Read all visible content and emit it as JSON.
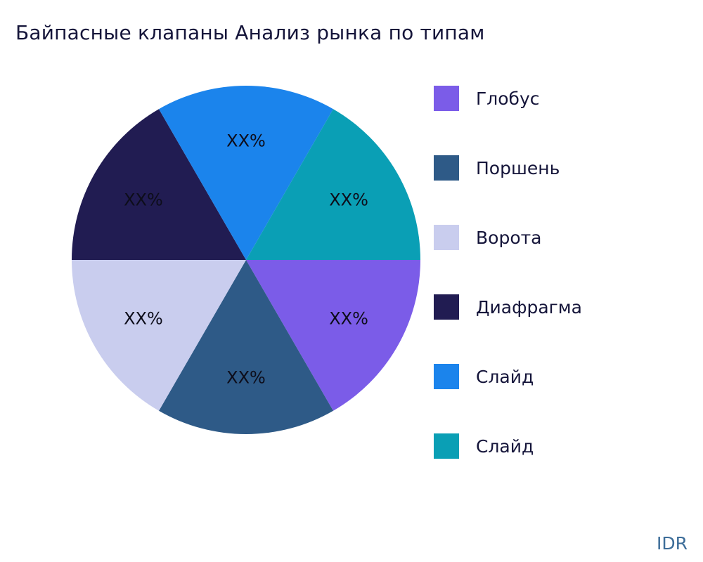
{
  "title": "Байпасные клапаны Анализ рынка по типам",
  "watermark": "IDR",
  "colors": {
    "title_text": "#15153a",
    "legend_text": "#15153a",
    "slice_label_text": "#0d0d1a",
    "watermark_text": "#3d6d99",
    "background": "#ffffff"
  },
  "chart_data": {
    "type": "pie",
    "title": "Байпасные клапаны Анализ рынка по типам",
    "labels": [
      "Глобус",
      "Поршень",
      "Ворота",
      "Диафрагма",
      "Слайд",
      "Слайд"
    ],
    "values": [
      16.67,
      16.67,
      16.67,
      16.67,
      16.67,
      16.67
    ],
    "slice_labels": [
      "XX%",
      "XX%",
      "XX%",
      "XX%",
      "XX%",
      "XX%"
    ],
    "colors": [
      "#7b5ce8",
      "#2e5a87",
      "#c9cdee",
      "#211c52",
      "#1b84ec",
      "#0a9fb5"
    ],
    "start_angle_deg": 0,
    "direction": "clockwise",
    "legend_position": "right",
    "label_radius_fraction": 0.68
  }
}
